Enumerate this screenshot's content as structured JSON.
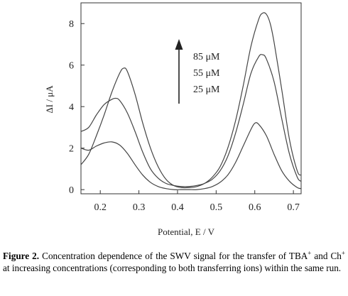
{
  "chart_data": {
    "type": "line",
    "xlabel": "Potential, E  / V",
    "ylabel": "ΔI / μA",
    "xlim": [
      0.15,
      0.72
    ],
    "ylim": [
      -0.2,
      9.0
    ],
    "xticks": [
      0.2,
      0.3,
      0.4,
      0.5,
      0.6,
      0.7
    ],
    "xtick_labels": [
      "0.2",
      "0.3",
      "0.4",
      "0.5",
      "0.6",
      "0.7"
    ],
    "yticks": [
      0,
      2,
      4,
      6,
      8
    ],
    "ytick_labels": [
      "0",
      "2",
      "4",
      "6",
      "8"
    ],
    "grid": false,
    "legend": [
      "85 μM",
      "55 μM",
      "25 μM"
    ],
    "annotation": "arrow pointing up: increasing concentration",
    "series": [
      {
        "name": "85 μM",
        "x": [
          0.15,
          0.17,
          0.19,
          0.21,
          0.23,
          0.25,
          0.26,
          0.27,
          0.29,
          0.31,
          0.33,
          0.35,
          0.37,
          0.39,
          0.41,
          0.43,
          0.45,
          0.47,
          0.49,
          0.51,
          0.53,
          0.55,
          0.57,
          0.59,
          0.61,
          0.62,
          0.63,
          0.64,
          0.65,
          0.67,
          0.69,
          0.71,
          0.72
        ],
        "y": [
          1.2,
          1.7,
          2.6,
          3.6,
          4.7,
          5.6,
          5.85,
          5.7,
          4.6,
          3.2,
          2.0,
          1.1,
          0.5,
          0.2,
          0.1,
          0.1,
          0.15,
          0.3,
          0.6,
          1.1,
          2.0,
          3.3,
          5.0,
          6.9,
          8.2,
          8.5,
          8.45,
          8.0,
          7.1,
          4.8,
          2.4,
          0.9,
          0.7
        ]
      },
      {
        "name": "55 μM",
        "x": [
          0.15,
          0.17,
          0.19,
          0.21,
          0.23,
          0.24,
          0.25,
          0.27,
          0.29,
          0.31,
          0.33,
          0.35,
          0.37,
          0.39,
          0.41,
          0.43,
          0.45,
          0.47,
          0.49,
          0.51,
          0.53,
          0.55,
          0.57,
          0.59,
          0.61,
          0.62,
          0.63,
          0.65,
          0.67,
          0.69,
          0.71,
          0.72
        ],
        "y": [
          2.8,
          3.0,
          3.6,
          4.1,
          4.35,
          4.4,
          4.3,
          3.7,
          2.8,
          1.8,
          1.0,
          0.55,
          0.3,
          0.2,
          0.15,
          0.15,
          0.2,
          0.3,
          0.5,
          0.9,
          1.6,
          2.7,
          4.1,
          5.6,
          6.4,
          6.5,
          6.3,
          5.2,
          3.4,
          1.7,
          0.6,
          0.4
        ]
      },
      {
        "name": "25 μM",
        "x": [
          0.15,
          0.17,
          0.19,
          0.21,
          0.23,
          0.25,
          0.27,
          0.29,
          0.31,
          0.33,
          0.35,
          0.37,
          0.39,
          0.41,
          0.43,
          0.45,
          0.47,
          0.49,
          0.51,
          0.53,
          0.55,
          0.57,
          0.59,
          0.6,
          0.61,
          0.63,
          0.65,
          0.67,
          0.69,
          0.71,
          0.72
        ],
        "y": [
          2.0,
          1.9,
          2.1,
          2.25,
          2.3,
          2.15,
          1.75,
          1.2,
          0.7,
          0.35,
          0.15,
          0.05,
          0.0,
          0.0,
          0.0,
          0.0,
          0.05,
          0.15,
          0.35,
          0.7,
          1.3,
          2.1,
          2.9,
          3.2,
          3.15,
          2.6,
          1.7,
          0.9,
          0.4,
          0.1,
          0.05
        ]
      }
    ]
  },
  "caption": {
    "label": "Figure 2.",
    "text_1": " Concentration dependence of the SWV signal for the transfer of TBA",
    "sup_1": "+",
    "text_2": " and Ch",
    "sup_2": "+",
    "text_3": " at increasing concentrations (corresponding to both transferring ions) within the same run."
  }
}
